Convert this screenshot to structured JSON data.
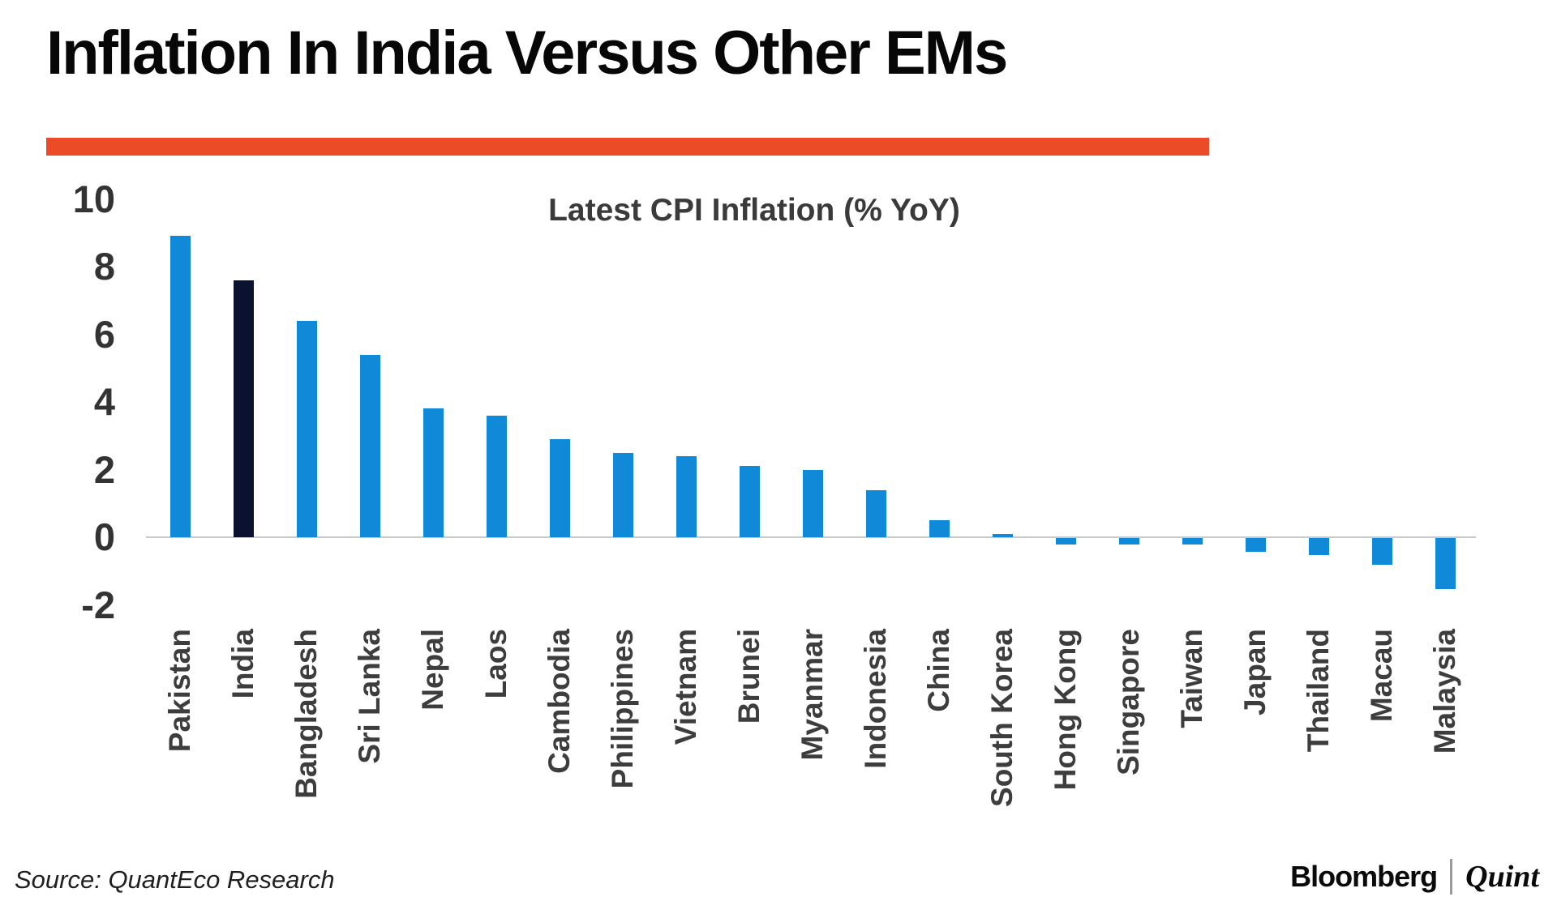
{
  "header": {
    "title": "Inflation In India Versus Other EMs"
  },
  "chart_data": {
    "type": "bar",
    "title": "Latest CPI Inflation (% YoY)",
    "categories": [
      "Pakistan",
      "India",
      "Bangladesh",
      "Sri Lanka",
      "Nepal",
      "Laos",
      "Cambodia",
      "Philippines",
      "Vietnam",
      "Brunei",
      "Myanmar",
      "Indonesia",
      "China",
      "South Korea",
      "Hong Kong",
      "Singapore",
      "Taiwan",
      "Japan",
      "Thailand",
      "Macau",
      "Malaysia"
    ],
    "values": [
      8.9,
      7.6,
      6.4,
      5.4,
      3.8,
      3.6,
      2.9,
      2.5,
      2.4,
      2.1,
      2.0,
      1.4,
      0.5,
      0.1,
      -0.2,
      -0.2,
      -0.2,
      -0.4,
      -0.5,
      -0.8,
      -1.5
    ],
    "ylim": [
      -2,
      10
    ],
    "yticks": [
      10,
      8,
      6,
      4,
      2,
      0,
      -2
    ],
    "grid": false,
    "legend": "none",
    "bar_color": "#1089D8",
    "highlight_color": "#0A1230",
    "highlight_index": 1,
    "accent_rule_color": "#EB4B26",
    "axis_line_color": "#C9C9C9"
  },
  "footer": {
    "source": "Source: QuantEco Research",
    "bloomberg": "Bloomberg",
    "quint": "Quint"
  }
}
